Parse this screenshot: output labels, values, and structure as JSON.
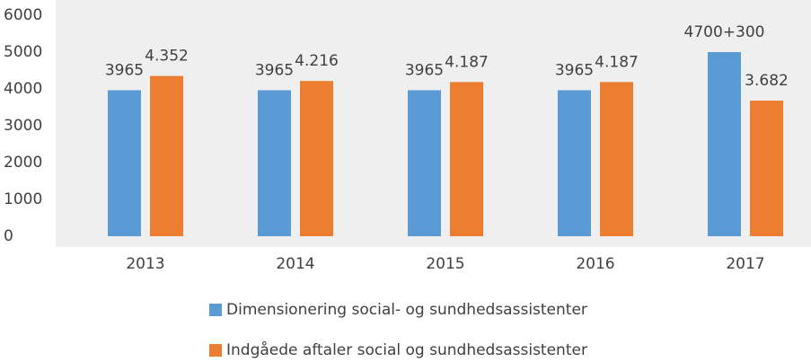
{
  "chart_data": {
    "type": "bar",
    "categories": [
      "2013",
      "2014",
      "2015",
      "2016",
      "2017"
    ],
    "series": [
      {
        "name": "Dimensionering social- og sundhedsassistenter",
        "color": "#5b9bd5",
        "values": [
          3965,
          3965,
          3965,
          3965,
          5000
        ],
        "value_labels": [
          "3965",
          "3965",
          "3965",
          "3965",
          "4700+300"
        ]
      },
      {
        "name": "Indgåede aftaler social og sundhedsassistenter",
        "color": "#ed7d31",
        "values": [
          4352,
          4216,
          4187,
          4187,
          3682
        ],
        "value_labels": [
          "4.352",
          "4.216",
          "4.187",
          "4.187",
          "3.682"
        ]
      }
    ],
    "ylim": [
      0,
      6000
    ],
    "yticks": [
      0,
      1000,
      2000,
      3000,
      4000,
      5000,
      6000
    ],
    "grid": false
  }
}
